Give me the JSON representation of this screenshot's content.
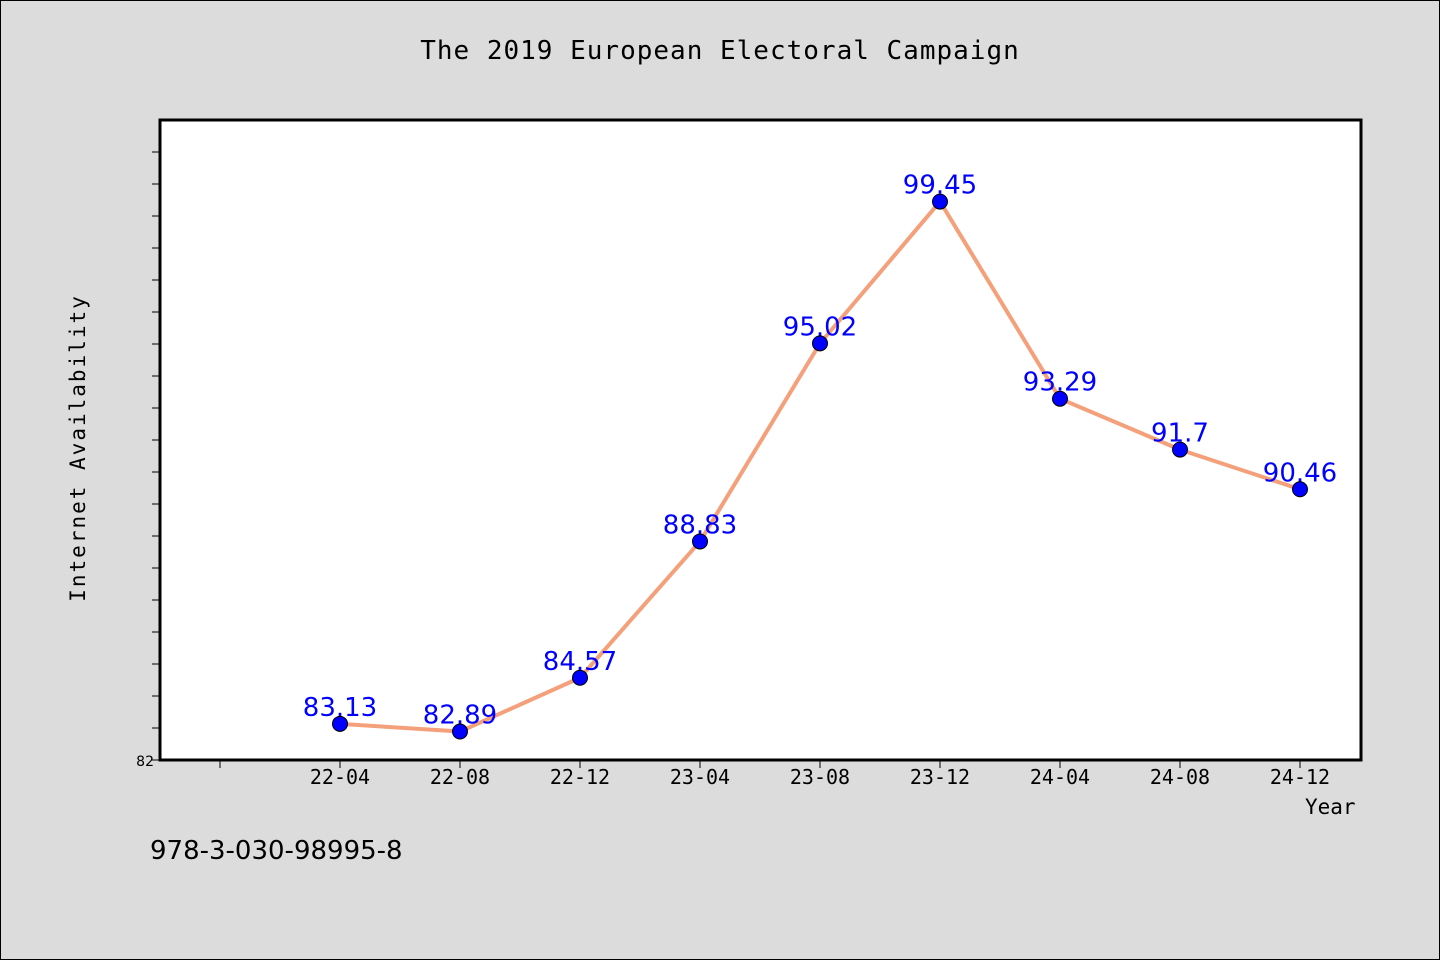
{
  "chart_data": {
    "type": "line",
    "title": "The 2019 European Electoral Campaign",
    "xlabel": "Year",
    "ylabel": "Internet Availability",
    "categories": [
      "22-04",
      "22-08",
      "22-12",
      "23-04",
      "23-08",
      "23-12",
      "24-04",
      "24-08",
      "24-12"
    ],
    "series": [
      {
        "values": [
          83.13,
          82.89,
          84.57,
          88.83,
          95.02,
          99.45,
          93.29,
          91.7,
          90.46
        ]
      }
    ],
    "value_labels": [
      "83.13",
      "82.89",
      "84.57",
      "88.83",
      "95.02",
      "99.45",
      "93.29",
      "91.7",
      "90.46"
    ],
    "ylim": [
      82,
      102
    ],
    "y_tick_labels": [
      "82"
    ],
    "grid": false,
    "line_color": "#f4a07a",
    "marker_color": "#0000ff",
    "label_color": "#0000ff"
  },
  "footer": {
    "isbn": "978-3-030-98995-8"
  }
}
